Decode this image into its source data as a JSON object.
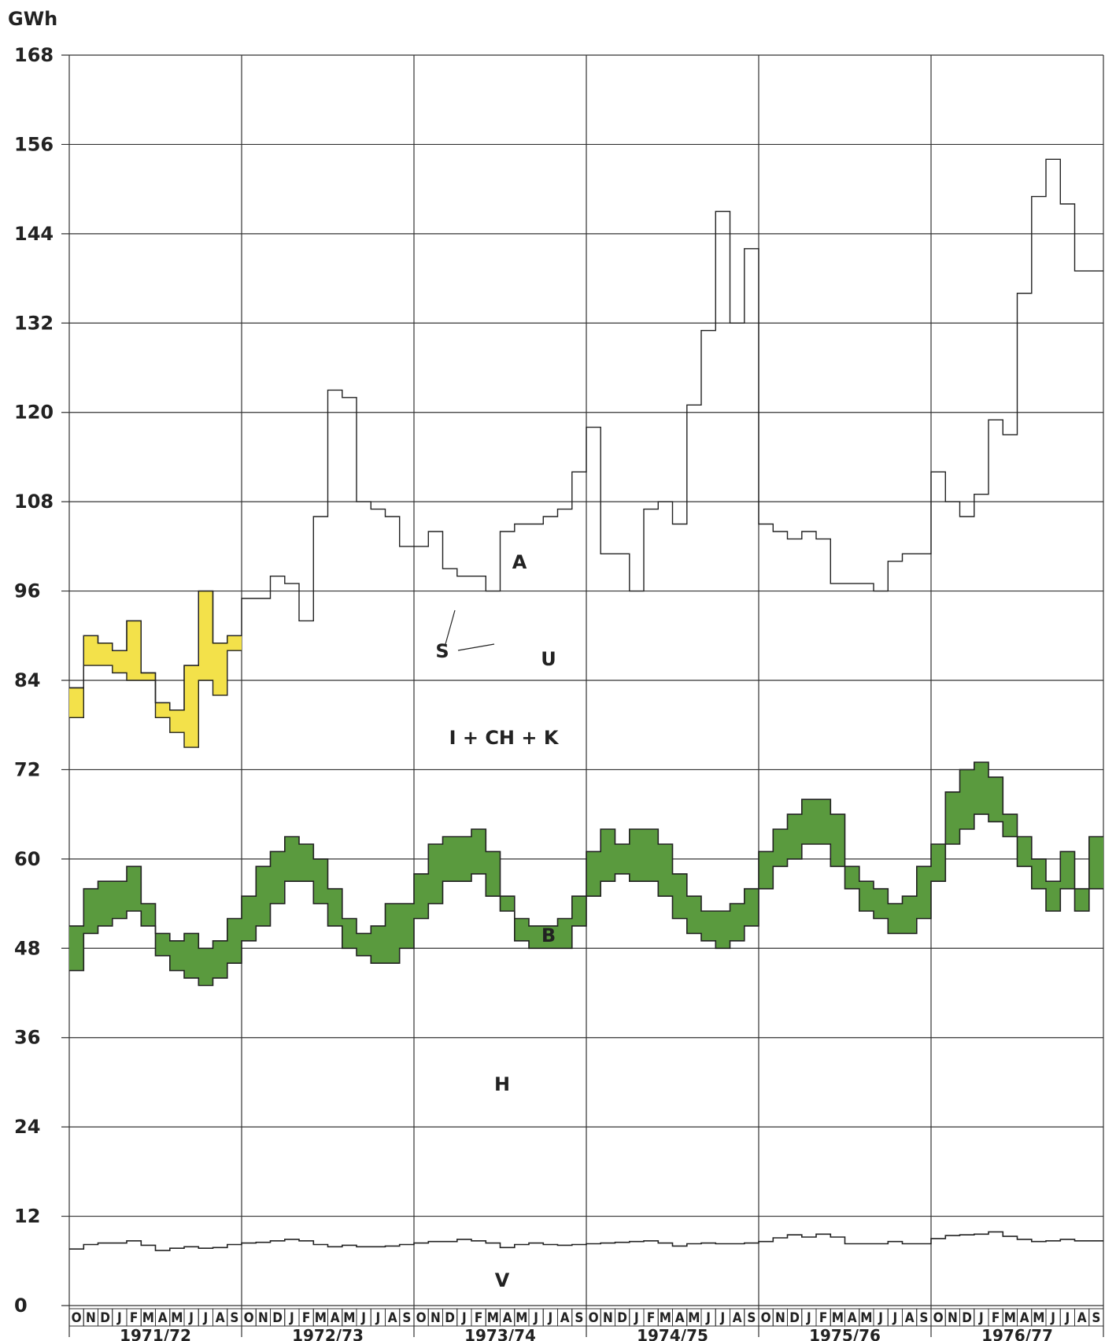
{
  "chart_data": {
    "type": "area",
    "unit_label": "GWh",
    "ylim": [
      0,
      168
    ],
    "y_ticks": [
      "0",
      "12",
      "24",
      "36",
      "48",
      "60",
      "72",
      "84",
      "96",
      "108",
      "120",
      "132",
      "144",
      "156",
      "168"
    ],
    "grid": true,
    "months": [
      "O",
      "N",
      "D",
      "J",
      "F",
      "M",
      "A",
      "M",
      "J",
      "J",
      "A",
      "S"
    ],
    "years": [
      "1971/72",
      "1972/73",
      "1973/74",
      "1974/75",
      "1975/76",
      "1976/77"
    ],
    "region_labels": {
      "A": "A",
      "S": "S",
      "U": "U",
      "ICHK": "I + CH + K",
      "B": "B",
      "H": "H",
      "V": "V"
    },
    "series": [
      {
        "name": "A",
        "values": [
          83,
          90,
          89,
          88,
          92,
          85,
          81,
          80,
          86,
          96,
          89,
          90,
          95,
          95,
          98,
          97,
          92,
          106,
          123,
          122,
          108,
          107,
          106,
          102,
          102,
          104,
          99,
          98,
          98,
          96,
          104,
          105,
          105,
          106,
          107,
          112,
          118,
          101,
          101,
          96,
          107,
          108,
          105,
          121,
          131,
          147,
          132,
          142,
          105,
          104,
          103,
          104,
          103,
          97,
          97,
          97,
          96,
          100,
          101,
          101,
          112,
          108,
          106,
          109,
          119,
          117,
          136,
          149,
          154,
          148,
          139,
          139
        ]
      },
      {
        "name": "S",
        "values": [
          83,
          90,
          89,
          88,
          92,
          85,
          81,
          80,
          86,
          96,
          89,
          90
        ]
      },
      {
        "name": "U",
        "values": [
          79,
          86,
          86,
          85,
          84,
          84,
          79,
          77,
          75,
          84,
          82,
          88
        ]
      },
      {
        "name": "B",
        "values": [
          51,
          56,
          57,
          57,
          59,
          54,
          50,
          49,
          50,
          48,
          49,
          52,
          55,
          59,
          61,
          63,
          62,
          60,
          56,
          52,
          50,
          51,
          54,
          54,
          58,
          62,
          63,
          63,
          64,
          61,
          55,
          52,
          51,
          51,
          52,
          55,
          61,
          64,
          62,
          64,
          64,
          62,
          58,
          55,
          53,
          53,
          54,
          56,
          61,
          64,
          66,
          68,
          68,
          66,
          59,
          57,
          56,
          54,
          55,
          59,
          62,
          69,
          72,
          73,
          71,
          66,
          63,
          60,
          57,
          61,
          56,
          63
        ]
      },
      {
        "name": "H",
        "values": [
          45,
          50,
          51,
          52,
          53,
          51,
          47,
          45,
          44,
          43,
          44,
          46,
          49,
          51,
          54,
          57,
          57,
          54,
          51,
          48,
          47,
          46,
          46,
          48,
          52,
          54,
          57,
          57,
          58,
          55,
          53,
          49,
          48,
          48,
          48,
          51,
          55,
          57,
          58,
          57,
          57,
          55,
          52,
          50,
          49,
          48,
          49,
          51,
          56,
          59,
          60,
          62,
          62,
          59,
          56,
          53,
          52,
          50,
          50,
          52,
          57,
          62,
          64,
          66,
          65,
          63,
          59,
          56,
          53,
          56,
          53,
          56
        ]
      },
      {
        "name": "V",
        "values": [
          7.6,
          8.2,
          8.4,
          8.4,
          8.7,
          8.1,
          7.4,
          7.7,
          7.9,
          7.7,
          7.8,
          8.2,
          8.4,
          8.5,
          8.7,
          8.9,
          8.7,
          8.2,
          7.9,
          8.1,
          7.9,
          7.9,
          8.0,
          8.2,
          8.4,
          8.6,
          8.6,
          8.9,
          8.7,
          8.4,
          7.8,
          8.2,
          8.4,
          8.2,
          8.1,
          8.2,
          8.3,
          8.4,
          8.5,
          8.6,
          8.7,
          8.4,
          8.0,
          8.3,
          8.4,
          8.3,
          8.3,
          8.4,
          8.6,
          9.1,
          9.5,
          9.2,
          9.6,
          9.2,
          8.3,
          8.3,
          8.3,
          8.6,
          8.3,
          8.3,
          9.0,
          9.4,
          9.5,
          9.6,
          9.9,
          9.3,
          8.9,
          8.6,
          8.7,
          8.9,
          8.7,
          8.7
        ]
      }
    ]
  }
}
